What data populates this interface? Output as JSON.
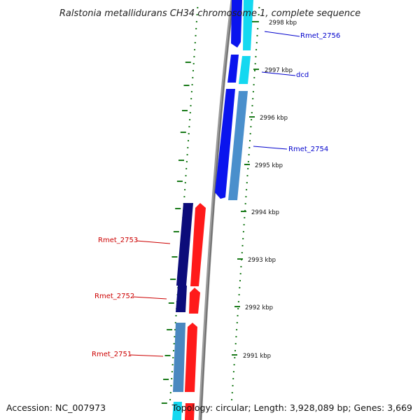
{
  "title": "Ralstonia metallidurans CH34 chromosome 1, complete sequence",
  "accession": "Accession: NC_007973",
  "topology": "Topology: circular; Length: 3,928,089 bp; Genes: 3,669",
  "colors": {
    "forward_outer": "#0a14ee",
    "forward_inner_a": "#14d8f0",
    "forward_inner_b": "#4a8fcc",
    "reverse_outer": "#0c0c7a",
    "reverse_inner_a": "#ff1a1a",
    "reverse_inner_b": "#5a8fc8",
    "backbone": "#808080",
    "ticks": "#1a7a1a",
    "label_forward": "#0000cc",
    "label_reverse": "#cc0000"
  },
  "kbp_labels": [
    "2998 kbp",
    "2997 kbp",
    "2996 kbp",
    "2995 kbp",
    "2994 kbp",
    "2993 kbp",
    "2992 kbp",
    "2991 kbp"
  ],
  "gene_labels": {
    "forward": [
      "Rmet_2756",
      "dcd",
      "Rmet_2754"
    ],
    "reverse": [
      "Rmet_2753",
      "Rmet_2752",
      "Rmet_2751"
    ]
  }
}
